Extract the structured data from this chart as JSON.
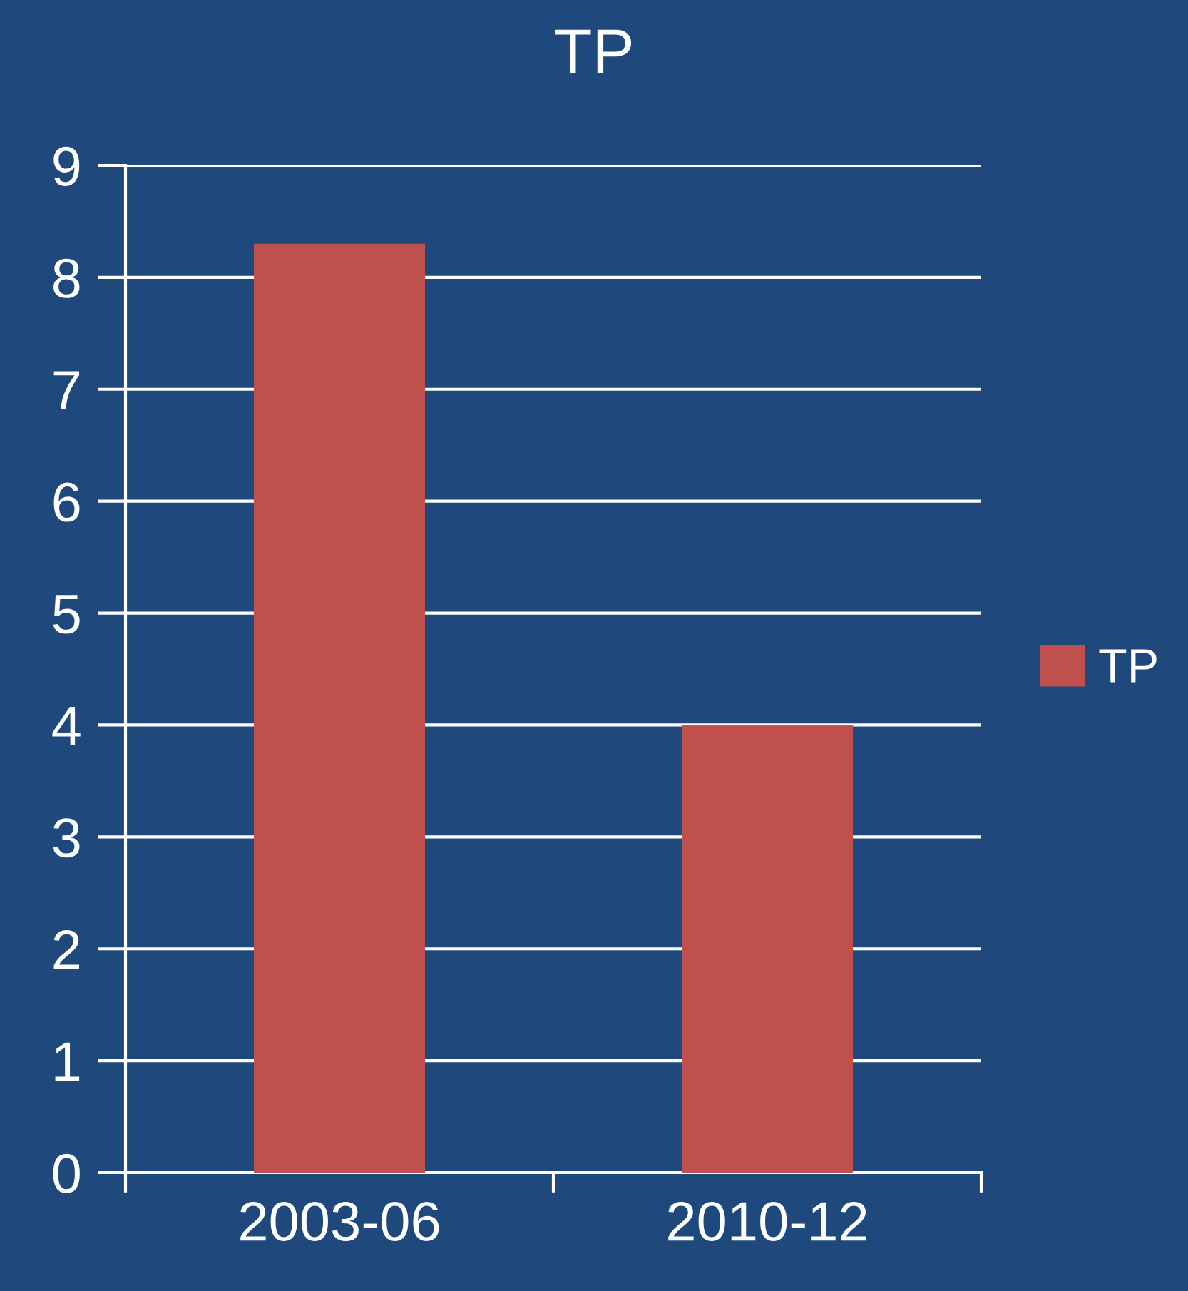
{
  "chart_data": {
    "type": "bar",
    "title": "TP",
    "categories": [
      "2003-06",
      "2010-12"
    ],
    "series": [
      {
        "name": "TP",
        "color": "#c0504d",
        "values": [
          8.3,
          4.0
        ]
      }
    ],
    "ylim": [
      0,
      9
    ],
    "yticks": [
      0,
      1,
      2,
      3,
      4,
      5,
      6,
      7,
      8,
      9
    ],
    "grid": "y",
    "legend": "right"
  }
}
